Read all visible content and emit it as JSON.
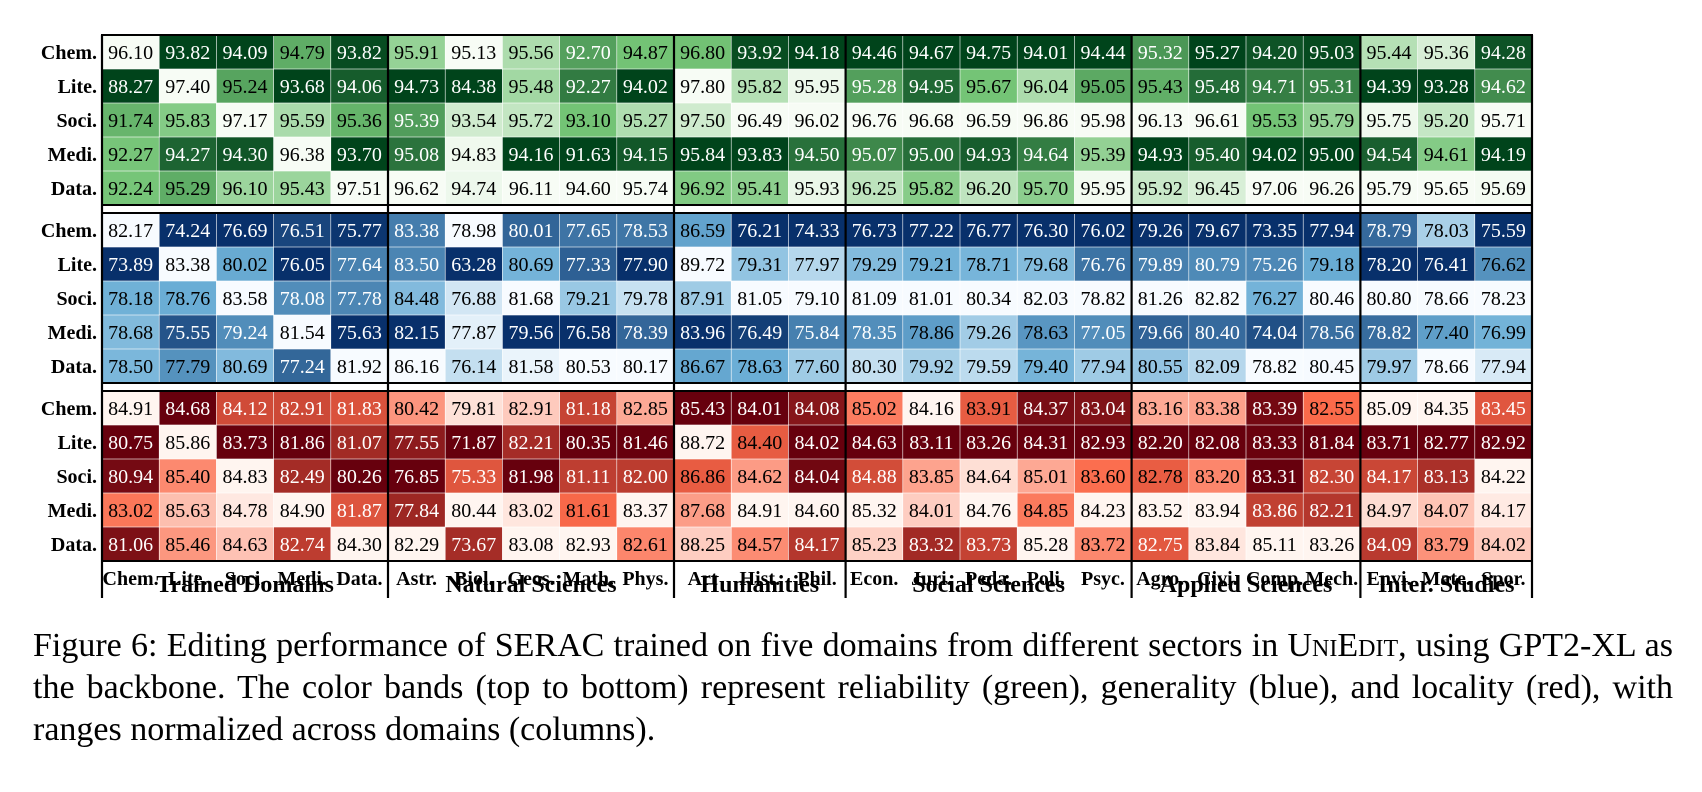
{
  "chart_data": {
    "type": "heatmap",
    "row_labels": [
      "Chem.",
      "Lite.",
      "Soci.",
      "Medi.",
      "Data."
    ],
    "column_labels": [
      "Chem.",
      "Lite.",
      "Soci.",
      "Medi.",
      "Data.",
      "Astr.",
      "Biol.",
      "Geos.",
      "Math.",
      "Phys.",
      "Art",
      "Hist.",
      "Phil.",
      "Econ.",
      "Juri.",
      "Peda.",
      "Poli.",
      "Psyc.",
      "Agro.",
      "Civi.",
      "Comp.",
      "Mech.",
      "Envi.",
      "Mate.",
      "Spor."
    ],
    "groups": [
      {
        "name": "Trained Domains",
        "count": 5
      },
      {
        "name": "Natural Sciences",
        "count": 5
      },
      {
        "name": "Humanities",
        "count": 3
      },
      {
        "name": "Social Sciences",
        "count": 5
      },
      {
        "name": "Applied Sciences",
        "count": 4
      },
      {
        "name": "Inter. Studies",
        "count": 3
      }
    ],
    "bands": [
      {
        "metric": "reliability",
        "color": "green",
        "values": [
          [
            96.1,
            93.82,
            94.09,
            94.79,
            93.82,
            95.91,
            95.13,
            95.56,
            92.7,
            94.87,
            96.8,
            93.92,
            94.18,
            94.46,
            94.67,
            94.75,
            94.01,
            94.44,
            95.32,
            95.27,
            94.2,
            95.03,
            95.44,
            95.36,
            94.28
          ],
          [
            88.27,
            97.4,
            95.24,
            93.68,
            94.06,
            94.73,
            84.38,
            95.48,
            92.27,
            94.02,
            97.8,
            95.82,
            95.95,
            95.28,
            94.95,
            95.67,
            96.04,
            95.05,
            95.43,
            95.48,
            94.71,
            95.31,
            94.39,
            93.28,
            94.62
          ],
          [
            91.74,
            95.83,
            97.17,
            95.59,
            95.36,
            95.39,
            93.54,
            95.72,
            93.1,
            95.27,
            97.5,
            96.49,
            96.02,
            96.76,
            96.68,
            96.59,
            96.86,
            95.98,
            96.13,
            96.61,
            95.53,
            95.79,
            95.75,
            95.2,
            95.71
          ],
          [
            92.27,
            94.27,
            94.3,
            96.38,
            93.7,
            95.08,
            94.83,
            94.16,
            91.63,
            94.15,
            95.84,
            93.83,
            94.5,
            95.07,
            95.0,
            94.93,
            94.64,
            95.39,
            94.93,
            95.4,
            94.02,
            95.0,
            94.54,
            94.61,
            94.19
          ],
          [
            92.24,
            95.29,
            96.1,
            95.43,
            97.51,
            96.62,
            94.74,
            96.11,
            94.6,
            95.74,
            96.92,
            95.41,
            95.93,
            96.25,
            95.82,
            96.2,
            95.7,
            95.95,
            95.92,
            96.45,
            97.06,
            96.26,
            95.79,
            95.65,
            95.69
          ]
        ]
      },
      {
        "metric": "generality",
        "color": "blue",
        "values": [
          [
            82.17,
            74.24,
            76.69,
            76.51,
            75.77,
            83.38,
            78.98,
            80.01,
            77.65,
            78.53,
            86.59,
            76.21,
            74.33,
            76.73,
            77.22,
            76.77,
            76.3,
            76.02,
            79.26,
            79.67,
            73.35,
            77.94,
            78.79,
            78.03,
            75.59
          ],
          [
            73.89,
            83.38,
            80.02,
            76.05,
            77.64,
            83.5,
            63.28,
            80.69,
            77.33,
            77.9,
            89.72,
            79.31,
            77.97,
            79.29,
            79.21,
            78.71,
            79.68,
            76.76,
            79.89,
            80.79,
            75.26,
            79.18,
            78.2,
            76.41,
            76.62
          ],
          [
            78.18,
            78.76,
            83.58,
            78.08,
            77.78,
            84.48,
            76.88,
            81.68,
            79.21,
            79.78,
            87.91,
            81.05,
            79.1,
            81.09,
            81.01,
            80.34,
            82.03,
            78.82,
            81.26,
            82.82,
            76.27,
            80.46,
            80.8,
            78.66,
            78.23
          ],
          [
            78.68,
            75.55,
            79.24,
            81.54,
            75.63,
            82.15,
            77.87,
            79.56,
            76.58,
            78.39,
            83.96,
            76.49,
            75.84,
            78.35,
            78.86,
            79.26,
            78.63,
            77.05,
            79.66,
            80.4,
            74.04,
            78.56,
            78.82,
            77.4,
            76.99
          ],
          [
            78.5,
            77.79,
            80.69,
            77.24,
            81.92,
            86.16,
            76.14,
            81.58,
            80.53,
            80.17,
            86.67,
            78.63,
            77.6,
            80.3,
            79.92,
            79.59,
            79.4,
            77.94,
            80.55,
            82.09,
            78.82,
            80.45,
            79.97,
            78.66,
            77.94
          ]
        ]
      },
      {
        "metric": "locality",
        "color": "red",
        "values": [
          [
            84.91,
            84.68,
            84.12,
            82.91,
            81.83,
            80.42,
            79.81,
            82.91,
            81.18,
            82.85,
            85.43,
            84.01,
            84.08,
            85.02,
            84.16,
            83.91,
            84.37,
            83.04,
            83.16,
            83.38,
            83.39,
            82.55,
            85.09,
            84.35,
            83.45
          ],
          [
            80.75,
            85.86,
            83.73,
            81.86,
            81.07,
            77.55,
            71.87,
            82.21,
            80.35,
            81.46,
            88.72,
            84.4,
            84.02,
            84.63,
            83.11,
            83.26,
            84.31,
            82.93,
            82.2,
            82.08,
            83.33,
            81.84,
            83.71,
            82.77,
            82.92
          ],
          [
            80.94,
            85.4,
            84.83,
            82.49,
            80.26,
            76.85,
            75.33,
            81.98,
            81.11,
            82.0,
            86.86,
            84.62,
            84.04,
            84.88,
            83.85,
            84.64,
            85.01,
            83.6,
            82.78,
            83.2,
            83.31,
            82.3,
            84.17,
            83.13,
            84.22
          ],
          [
            83.02,
            85.63,
            84.78,
            84.9,
            81.87,
            77.84,
            80.44,
            83.02,
            81.61,
            83.37,
            87.68,
            84.91,
            84.6,
            85.32,
            84.01,
            84.76,
            84.85,
            84.23,
            83.52,
            83.94,
            83.86,
            82.21,
            84.97,
            84.07,
            84.17
          ],
          [
            81.06,
            85.46,
            84.63,
            82.74,
            84.3,
            82.29,
            73.67,
            83.08,
            82.93,
            82.61,
            88.25,
            84.57,
            84.17,
            85.23,
            83.32,
            83.73,
            85.28,
            83.72,
            82.75,
            83.84,
            85.11,
            83.26,
            84.09,
            83.79,
            84.02
          ]
        ]
      }
    ],
    "normalization": "per column within each band"
  },
  "colors": {
    "green_low": "#f7fcf5",
    "green_mid": "#74c476",
    "green_high": "#00441b",
    "blue_low": "#f7fbff",
    "blue_mid": "#6baed6",
    "blue_high": "#08306b",
    "red_low": "#fff5f0",
    "red_mid": "#fb6a4a",
    "red_high": "#67000d"
  },
  "caption": {
    "prefix": "Figure 6: Editing performance of SERAC trained on five domains from different sectors in ",
    "dataset_name": "UniEdit",
    "suffix": ", using GPT2-XL as the backbone.  The color bands (top to bottom) represent reliability (green), generality (blue), and locality (red), with ranges normalized across domains (columns)."
  }
}
